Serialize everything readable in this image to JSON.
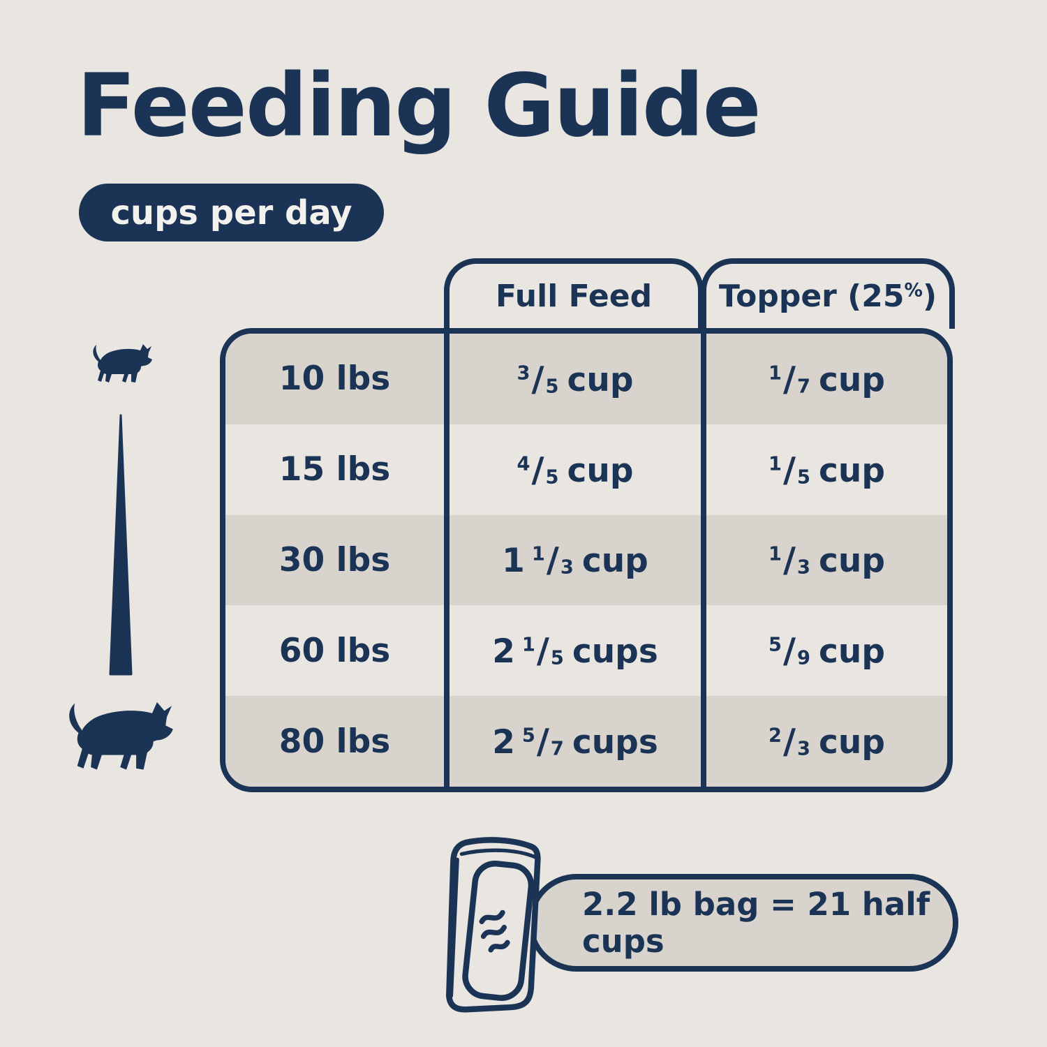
{
  "page": {
    "title": "Feeding Guide",
    "badge": "cups per day",
    "note": "2.2 lb bag = 21 half cups"
  },
  "colors": {
    "background": "#e9e6e1",
    "navy": "#1b3355",
    "shaded_row": "#d8d4cd",
    "note_fill": "#d8d4cd",
    "badge_text": "#f3f1ed"
  },
  "table": {
    "headers": {
      "full_feed": "Full Feed",
      "topper_pre": "Topper (25",
      "topper_sup": "%",
      "topper_post": ")"
    },
    "rows": [
      {
        "weight": "10 lbs",
        "full": {
          "whole": "",
          "num": "3",
          "den": "5",
          "unit": "cup"
        },
        "topper": {
          "whole": "",
          "num": "1",
          "den": "7",
          "unit": "cup"
        }
      },
      {
        "weight": "15 lbs",
        "full": {
          "whole": "",
          "num": "4",
          "den": "5",
          "unit": "cup"
        },
        "topper": {
          "whole": "",
          "num": "1",
          "den": "5",
          "unit": "cup"
        }
      },
      {
        "weight": "30 lbs",
        "full": {
          "whole": "1",
          "num": "1",
          "den": "3",
          "unit": "cup"
        },
        "topper": {
          "whole": "",
          "num": "1",
          "den": "3",
          "unit": "cup"
        }
      },
      {
        "weight": "60 lbs",
        "full": {
          "whole": "2",
          "num": "1",
          "den": "5",
          "unit": "cups"
        },
        "topper": {
          "whole": "",
          "num": "5",
          "den": "9",
          "unit": "cup"
        }
      },
      {
        "weight": "80 lbs",
        "full": {
          "whole": "2",
          "num": "5",
          "den": "7",
          "unit": "cups"
        },
        "topper": {
          "whole": "",
          "num": "2",
          "den": "3",
          "unit": "cup"
        }
      }
    ]
  },
  "icons": {
    "small_dog": "small-dog-icon",
    "large_dog": "large-dog-icon",
    "wedge": "size-scale-wedge-icon",
    "bag": "dog-food-bag-icon"
  }
}
